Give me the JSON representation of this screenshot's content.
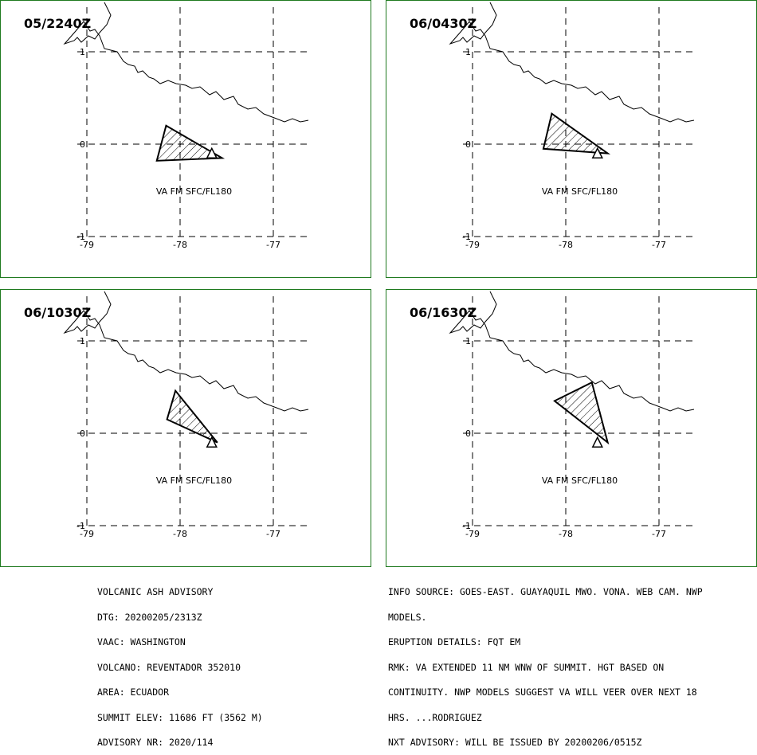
{
  "panels": [
    {
      "title": "05/2240Z",
      "label": "VA FM SFC/FL180",
      "polygon": [
        [
          -78.15,
          0.2
        ],
        [
          -77.55,
          -0.15
        ],
        [
          -78.25,
          -0.18
        ]
      ]
    },
    {
      "title": "06/0430Z",
      "label": "VA FM SFC/FL180",
      "polygon": [
        [
          -78.15,
          0.33
        ],
        [
          -77.55,
          -0.1
        ],
        [
          -78.24,
          -0.05
        ]
      ]
    },
    {
      "title": "06/1030Z",
      "label": "VA FM SFC/FL180",
      "polygon": [
        [
          -78.05,
          0.46
        ],
        [
          -77.6,
          -0.1
        ],
        [
          -78.14,
          0.15
        ]
      ]
    },
    {
      "title": "06/1630Z",
      "label": "VA FM SFC/FL180",
      "polygon": [
        [
          -77.72,
          0.55
        ],
        [
          -77.55,
          -0.1
        ],
        [
          -78.12,
          0.35
        ]
      ]
    }
  ],
  "axes": {
    "x_ticks": [
      "-79",
      "-78",
      "-77"
    ],
    "y_ticks": [
      "1",
      "0",
      "-1"
    ]
  },
  "advisory_left": [
    "VOLCANIC ASH ADVISORY",
    "DTG: 20200205/2313Z",
    "VAAC: WASHINGTON",
    "VOLCANO: REVENTADOR 352010",
    "AREA: ECUADOR",
    "SUMMIT ELEV: 11686 FT (3562 M)",
    "ADVISORY NR: 2020/114"
  ],
  "advisory_right": [
    "INFO SOURCE: GOES-EAST. GUAYAQUIL MWO. VONA. WEB CAM. NWP",
    "MODELS.",
    "ERUPTION DETAILS: FQT EM",
    "RMK: VA EXTENDED 11 NM WNW OF SUMMIT. HGT BASED ON",
    "CONTINUITY. NWP MODELS SUGGEST VA WILL VEER OVER NEXT 18",
    "HRS. ...RODRIGUEZ",
    "NXT ADVISORY: WILL BE ISSUED BY 20200206/0515Z"
  ],
  "colors": {
    "border": "#1f7a1f",
    "lines": "#000000",
    "background": "#ffffff"
  }
}
